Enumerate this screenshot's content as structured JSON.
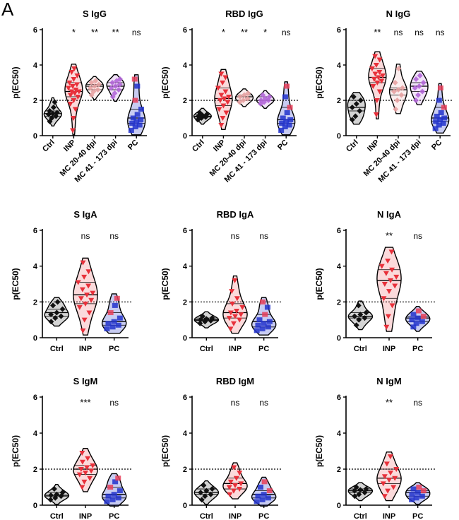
{
  "panel_letter": "A",
  "colors": {
    "ctrl": "#111111",
    "inp": "#e8303a",
    "mc1": "#e8a2a2",
    "mc2": "#b266d8",
    "pc": "#2233cc",
    "pc_accent": "#e8405a"
  },
  "chart_data": [
    {
      "type": "violin",
      "title": "S IgG",
      "ylabel": "p(EC50)",
      "ylim": [
        0,
        6
      ],
      "yticks": [
        "0",
        "2",
        "4",
        "6"
      ],
      "threshold": 2,
      "categories": [
        "Ctrl",
        "INP",
        "MC 20-40 dpi",
        "MC 41 - 173 dpi",
        "PC"
      ],
      "significance": [
        "",
        "*",
        "**",
        "**",
        "ns"
      ],
      "series": [
        {
          "name": "Ctrl",
          "values": [
            0.8,
            1.0,
            1.1,
            1.2,
            1.25,
            1.3,
            1.4,
            1.6,
            1.9
          ]
        },
        {
          "name": "INP",
          "values": [
            0.3,
            1.0,
            1.5,
            1.8,
            2.0,
            2.2,
            2.3,
            2.4,
            2.5,
            2.5,
            2.6,
            2.7,
            2.8,
            2.9,
            3.0,
            3.2,
            3.4,
            3.6,
            3.8
          ]
        },
        {
          "name": "MC 20-40 dpi",
          "values": [
            2.3,
            2.5,
            2.6,
            2.7,
            2.8,
            2.9,
            3.0,
            3.1
          ]
        },
        {
          "name": "MC 41 - 173 dpi",
          "values": [
            2.2,
            2.4,
            2.6,
            2.7,
            2.8,
            2.9,
            3.0,
            3.1,
            3.2
          ]
        },
        {
          "name": "PC",
          "values": [
            0.3,
            0.5,
            0.6,
            0.7,
            0.8,
            0.9,
            1.0,
            1.2,
            1.5,
            2.0,
            2.8,
            3.2
          ]
        }
      ]
    },
    {
      "type": "violin",
      "title": "RBD IgG",
      "ylabel": "p(EC50)",
      "ylim": [
        0,
        6
      ],
      "yticks": [
        "0",
        "2",
        "4",
        "6"
      ],
      "threshold": 2,
      "categories": [
        "Ctrl",
        "INP",
        "MC 20-40 dpi",
        "MC 41 - 173 dpi",
        "PC"
      ],
      "significance": [
        "",
        "*",
        "**",
        "*",
        "ns"
      ],
      "series": [
        {
          "name": "Ctrl",
          "values": [
            0.9,
            1.0,
            1.05,
            1.1,
            1.15,
            1.2,
            1.3
          ]
        },
        {
          "name": "INP",
          "values": [
            0.6,
            1.0,
            1.3,
            1.5,
            1.7,
            1.9,
            2.0,
            2.1,
            2.2,
            2.3,
            2.5,
            2.7,
            3.0,
            3.3,
            3.5
          ]
        },
        {
          "name": "MC 20-40 dpi",
          "values": [
            1.9,
            2.0,
            2.1,
            2.2,
            2.3,
            2.4
          ]
        },
        {
          "name": "MC 41 - 173 dpi",
          "values": [
            1.8,
            1.9,
            2.0,
            2.0,
            2.1,
            2.2,
            2.3
          ]
        },
        {
          "name": "PC",
          "values": [
            0.3,
            0.5,
            0.6,
            0.7,
            0.8,
            0.9,
            1.0,
            1.3,
            1.6,
            2.2,
            2.8
          ]
        }
      ]
    },
    {
      "type": "violin",
      "title": "N IgG",
      "ylabel": "p(EC50)",
      "ylim": [
        0,
        6
      ],
      "yticks": [
        "0",
        "2",
        "4",
        "6"
      ],
      "threshold": 2,
      "categories": [
        "Ctrl",
        "INP",
        "MC 20-40 dpi",
        "MC 41 - 173 dpi",
        "PC"
      ],
      "significance": [
        "",
        "**",
        "ns",
        "ns",
        "ns"
      ],
      "series": [
        {
          "name": "Ctrl",
          "values": [
            0.9,
            1.1,
            1.4,
            1.6,
            1.8,
            2.0,
            2.2
          ]
        },
        {
          "name": "INP",
          "values": [
            1.2,
            2.0,
            2.5,
            2.8,
            3.0,
            3.1,
            3.2,
            3.3,
            3.4,
            3.5,
            3.6,
            3.8,
            4.0,
            4.3,
            4.5
          ]
        },
        {
          "name": "MC 20-40 dpi",
          "values": [
            1.5,
            2.0,
            2.3,
            2.5,
            2.6,
            2.7,
            3.0,
            3.8
          ]
        },
        {
          "name": "MC 41 - 173 dpi",
          "values": [
            2.0,
            2.3,
            2.5,
            2.7,
            2.8,
            3.0,
            3.2,
            3.4
          ]
        },
        {
          "name": "PC",
          "values": [
            0.4,
            0.6,
            0.7,
            0.8,
            0.9,
            1.0,
            1.1,
            1.3,
            1.6,
            2.0,
            2.7
          ]
        }
      ]
    },
    {
      "type": "violin",
      "title": "S IgA",
      "ylabel": "p(EC50)",
      "ylim": [
        0,
        6
      ],
      "yticks": [
        "0",
        "2",
        "4",
        "6"
      ],
      "threshold": 2,
      "categories": [
        "Ctrl",
        "INP",
        "PC"
      ],
      "significance": [
        "",
        "ns",
        "ns"
      ],
      "series": [
        {
          "name": "Ctrl",
          "values": [
            0.9,
            1.1,
            1.2,
            1.3,
            1.4,
            1.6,
            1.8,
            2.0
          ]
        },
        {
          "name": "INP",
          "values": [
            0.4,
            1.0,
            1.4,
            1.7,
            1.9,
            2.1,
            2.2,
            2.4,
            2.5,
            2.7,
            2.9,
            3.1,
            3.4,
            3.7,
            4.2
          ]
        },
        {
          "name": "PC",
          "values": [
            0.5,
            0.6,
            0.7,
            0.8,
            0.9,
            1.1,
            1.4,
            1.8,
            2.2
          ]
        }
      ]
    },
    {
      "type": "violin",
      "title": "RBD IgA",
      "ylabel": "p(EC50)",
      "ylim": [
        0,
        6
      ],
      "yticks": [
        "0",
        "2",
        "4",
        "6"
      ],
      "threshold": 2,
      "categories": [
        "Ctrl",
        "INP",
        "PC"
      ],
      "significance": [
        "",
        "ns",
        "ns"
      ],
      "series": [
        {
          "name": "Ctrl",
          "values": [
            0.8,
            0.9,
            0.95,
            1.0,
            1.05,
            1.1,
            1.2
          ]
        },
        {
          "name": "INP",
          "values": [
            0.5,
            0.8,
            1.0,
            1.1,
            1.2,
            1.3,
            1.4,
            1.5,
            1.7,
            1.9,
            2.2,
            2.6,
            3.2
          ]
        },
        {
          "name": "PC",
          "values": [
            0.4,
            0.5,
            0.6,
            0.7,
            0.8,
            0.9,
            1.0,
            1.3,
            1.7,
            2.0
          ]
        }
      ]
    },
    {
      "type": "violin",
      "title": "N IgA",
      "ylabel": "p(EC50)",
      "ylim": [
        0,
        6
      ],
      "yticks": [
        "0",
        "2",
        "4",
        "6"
      ],
      "threshold": 2,
      "categories": [
        "Ctrl",
        "INP",
        "PC"
      ],
      "significance": [
        "",
        "**",
        "ns"
      ],
      "series": [
        {
          "name": "Ctrl",
          "values": [
            0.7,
            1.0,
            1.1,
            1.2,
            1.3,
            1.4,
            1.8
          ]
        },
        {
          "name": "INP",
          "values": [
            0.6,
            1.2,
            1.8,
            2.2,
            2.6,
            2.9,
            3.0,
            3.2,
            3.4,
            3.6,
            3.8,
            4.0,
            4.3,
            4.8
          ]
        },
        {
          "name": "PC",
          "values": [
            0.6,
            0.8,
            0.9,
            1.0,
            1.1,
            1.2,
            1.3,
            1.5
          ]
        }
      ]
    },
    {
      "type": "violin",
      "title": "S IgM",
      "ylabel": "p(EC50)",
      "ylim": [
        0,
        6
      ],
      "yticks": [
        "0",
        "2",
        "4",
        "6"
      ],
      "threshold": 2,
      "categories": [
        "Ctrl",
        "INP",
        "PC"
      ],
      "significance": [
        "",
        "***",
        "ns"
      ],
      "series": [
        {
          "name": "Ctrl",
          "values": [
            0.3,
            0.4,
            0.5,
            0.55,
            0.6,
            0.7,
            0.9
          ]
        },
        {
          "name": "INP",
          "values": [
            1.0,
            1.3,
            1.5,
            1.7,
            1.8,
            1.9,
            2.0,
            2.1,
            2.2,
            2.4,
            2.6,
            2.9
          ]
        },
        {
          "name": "PC",
          "values": [
            0.2,
            0.3,
            0.4,
            0.5,
            0.6,
            0.8,
            1.0,
            1.3,
            1.5
          ]
        }
      ]
    },
    {
      "type": "violin",
      "title": "RBD IgM",
      "ylabel": "p(EC50)",
      "ylim": [
        0,
        6
      ],
      "yticks": [
        "0",
        "2",
        "4",
        "6"
      ],
      "threshold": 2,
      "categories": [
        "Ctrl",
        "INP",
        "PC"
      ],
      "significance": [
        "",
        "ns",
        "ns"
      ],
      "series": [
        {
          "name": "Ctrl",
          "values": [
            0.3,
            0.5,
            0.6,
            0.7,
            0.8,
            0.9,
            1.1
          ]
        },
        {
          "name": "INP",
          "values": [
            0.6,
            0.8,
            0.9,
            1.0,
            1.1,
            1.2,
            1.3,
            1.5,
            1.8,
            2.1
          ]
        },
        {
          "name": "PC",
          "values": [
            0.2,
            0.3,
            0.4,
            0.5,
            0.6,
            0.8,
            1.0,
            1.3
          ]
        }
      ]
    },
    {
      "type": "violin",
      "title": "N IgM",
      "ylabel": "p(EC50)",
      "ylim": [
        0,
        6
      ],
      "yticks": [
        "0",
        "2",
        "4",
        "6"
      ],
      "threshold": 2,
      "categories": [
        "Ctrl",
        "INP",
        "PC"
      ],
      "significance": [
        "",
        "**",
        "ns"
      ],
      "series": [
        {
          "name": "Ctrl",
          "values": [
            0.5,
            0.6,
            0.7,
            0.8,
            0.85,
            0.9,
            1.0
          ]
        },
        {
          "name": "INP",
          "values": [
            0.5,
            0.8,
            1.0,
            1.2,
            1.4,
            1.5,
            1.6,
            1.8,
            2.0,
            2.3,
            2.7
          ]
        },
        {
          "name": "PC",
          "values": [
            0.3,
            0.4,
            0.5,
            0.6,
            0.7,
            0.8,
            0.9,
            1.0
          ]
        }
      ]
    }
  ]
}
